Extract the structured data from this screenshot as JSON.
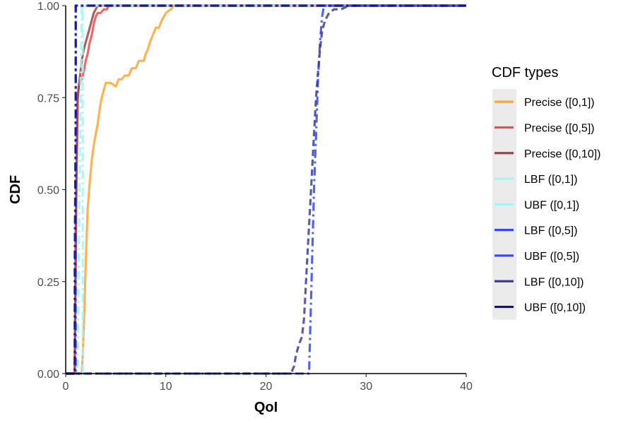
{
  "chart_data": {
    "type": "line",
    "xlabel": "QoI",
    "ylabel": "CDF",
    "xlim": [
      0,
      40
    ],
    "ylim": [
      0,
      1
    ],
    "x_ticks": [
      "0",
      "10",
      "20",
      "30",
      "40"
    ],
    "y_ticks": [
      "0.00",
      "0.25",
      "0.50",
      "0.75",
      "1.00"
    ],
    "grid": false,
    "legend": {
      "title": "CDF types",
      "position": "right",
      "entries": [
        "Precise ([0,1])",
        "Precise ([0,5])",
        "Precise ([0,10])",
        "LBF ([0,1])",
        "UBF ([0,1])",
        "LBF ([0,5])",
        "UBF ([0,5])",
        "LBF ([0,10])",
        "UBF ([0,10])"
      ]
    },
    "series": [
      {
        "name": "Precise ([0,1])",
        "color": "#FFA533",
        "dash": "solid",
        "points": [
          [
            0,
            0
          ],
          [
            1.6,
            0
          ],
          [
            1.7,
            0.05
          ],
          [
            1.8,
            0.12
          ],
          [
            1.9,
            0.2
          ],
          [
            2.0,
            0.3
          ],
          [
            2.1,
            0.38
          ],
          [
            2.2,
            0.45
          ],
          [
            2.4,
            0.52
          ],
          [
            2.6,
            0.58
          ],
          [
            2.8,
            0.62
          ],
          [
            3.0,
            0.65
          ],
          [
            3.2,
            0.68
          ],
          [
            3.4,
            0.72
          ],
          [
            3.6,
            0.75
          ],
          [
            3.8,
            0.77
          ],
          [
            4.0,
            0.79
          ],
          [
            4.5,
            0.79
          ],
          [
            5.0,
            0.78
          ],
          [
            5.3,
            0.8
          ],
          [
            5.6,
            0.8
          ],
          [
            5.9,
            0.81
          ],
          [
            6.3,
            0.81
          ],
          [
            6.6,
            0.83
          ],
          [
            7.0,
            0.83
          ],
          [
            7.3,
            0.85
          ],
          [
            7.8,
            0.85
          ],
          [
            8.0,
            0.87
          ],
          [
            8.2,
            0.88
          ],
          [
            8.4,
            0.9
          ],
          [
            8.7,
            0.92
          ],
          [
            9.0,
            0.94
          ],
          [
            9.3,
            0.94
          ],
          [
            9.6,
            0.96
          ],
          [
            10.0,
            0.98
          ],
          [
            10.5,
            0.99
          ],
          [
            10.8,
            1.0
          ],
          [
            40,
            1.0
          ]
        ]
      },
      {
        "name": "Precise ([0,5])",
        "color": "#F24A4A",
        "dash": "solid",
        "points": [
          [
            0,
            0
          ],
          [
            0.9,
            0
          ],
          [
            1.0,
            0.3
          ],
          [
            1.1,
            0.6
          ],
          [
            1.2,
            0.75
          ],
          [
            1.3,
            0.78
          ],
          [
            1.4,
            0.79
          ],
          [
            1.6,
            0.8
          ],
          [
            1.8,
            0.82
          ],
          [
            2.0,
            0.85
          ],
          [
            2.2,
            0.87
          ],
          [
            2.4,
            0.9
          ],
          [
            2.6,
            0.92
          ],
          [
            2.8,
            0.95
          ],
          [
            3.0,
            0.97
          ],
          [
            3.2,
            0.98
          ],
          [
            3.5,
            0.98
          ],
          [
            3.8,
            0.99
          ],
          [
            4.1,
            0.99
          ],
          [
            4.3,
            1.0
          ],
          [
            40,
            1.0
          ]
        ]
      },
      {
        "name": "Precise ([0,10])",
        "color": "#9B4747",
        "dash": "solid",
        "points": [
          [
            0,
            0
          ],
          [
            0.9,
            0
          ],
          [
            1.0,
            0.4
          ],
          [
            1.2,
            0.75
          ],
          [
            1.4,
            0.8
          ],
          [
            1.6,
            0.85
          ],
          [
            1.8,
            0.88
          ],
          [
            2.0,
            0.9
          ],
          [
            2.2,
            0.92
          ],
          [
            2.4,
            0.94
          ],
          [
            2.6,
            0.96
          ],
          [
            2.8,
            0.98
          ],
          [
            3.0,
            0.99
          ],
          [
            3.2,
            1.0
          ],
          [
            40,
            1.0
          ]
        ]
      },
      {
        "name": "LBF ([0,1])",
        "color": "#A6F2F7",
        "dash": "dashdot",
        "points": [
          [
            0,
            0
          ],
          [
            1.7,
            0
          ],
          [
            1.7,
            1.0
          ],
          [
            40,
            1.0
          ]
        ]
      },
      {
        "name": "UBF ([0,1])",
        "color": "#A6F2F7",
        "dash": "dashdot",
        "points": [
          [
            0,
            0
          ],
          [
            1.2,
            0
          ],
          [
            1.5,
            0.8
          ],
          [
            1.6,
            1.0
          ],
          [
            40,
            1.0
          ]
        ]
      },
      {
        "name": "LBF ([0,5])",
        "color": "#3447F2",
        "dash": "dashdot",
        "points": [
          [
            0,
            0
          ],
          [
            24.3,
            0
          ],
          [
            24.4,
            0.1
          ],
          [
            24.6,
            0.3
          ],
          [
            24.8,
            0.5
          ],
          [
            25.0,
            0.65
          ],
          [
            25.2,
            0.8
          ],
          [
            25.4,
            0.9
          ],
          [
            25.6,
            0.97
          ],
          [
            25.8,
            1.0
          ],
          [
            40,
            1.0
          ]
        ]
      },
      {
        "name": "UBF ([0,5])",
        "color": "#3447F2",
        "dash": "dashdot",
        "points": [
          [
            0,
            0
          ],
          [
            1.0,
            0
          ],
          [
            1.0,
            1.0
          ],
          [
            40,
            1.0
          ]
        ]
      },
      {
        "name": "LBF ([0,10])",
        "color": "#3C3F99",
        "dash": "dashed",
        "points": [
          [
            0,
            0
          ],
          [
            22.5,
            0
          ],
          [
            22.8,
            0.02
          ],
          [
            23.0,
            0.05
          ],
          [
            23.3,
            0.08
          ],
          [
            23.6,
            0.1
          ],
          [
            23.8,
            0.15
          ],
          [
            24.0,
            0.25
          ],
          [
            24.2,
            0.35
          ],
          [
            24.4,
            0.45
          ],
          [
            24.6,
            0.55
          ],
          [
            24.8,
            0.65
          ],
          [
            25.0,
            0.75
          ],
          [
            25.2,
            0.82
          ],
          [
            25.4,
            0.88
          ],
          [
            25.6,
            0.93
          ],
          [
            25.9,
            0.96
          ],
          [
            26.3,
            0.98
          ],
          [
            26.8,
            0.99
          ],
          [
            27.5,
            0.99
          ],
          [
            28.3,
            1.0
          ],
          [
            40,
            1.0
          ]
        ]
      },
      {
        "name": "UBF ([0,10])",
        "color": "#12127A",
        "dash": "dashdot",
        "points": [
          [
            0,
            0
          ],
          [
            0.9,
            0
          ],
          [
            0.9,
            0.3
          ],
          [
            1.0,
            0.7
          ],
          [
            1.0,
            1.0
          ],
          [
            1.3,
            1.0
          ],
          [
            40,
            1.0
          ]
        ]
      }
    ]
  }
}
